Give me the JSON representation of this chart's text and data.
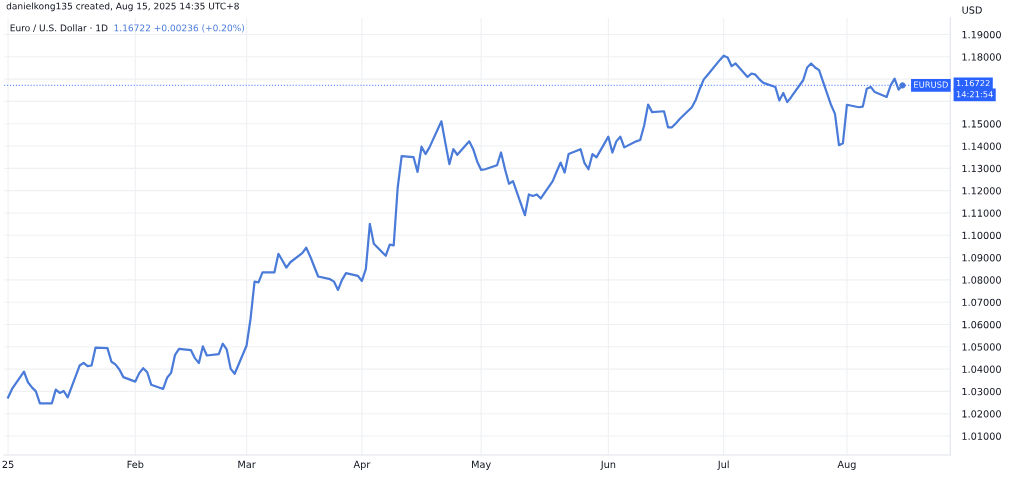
{
  "chart_data": {
    "type": "line",
    "title": "Euro / U.S. Dollar · 1D",
    "subtitle": "1.16722 +0.00236 (+0.20%)",
    "ylabel": "USD",
    "annotations": [
      "danielkong135 created, Aug 15, 2025 14:35 UTC+8",
      "1.16722",
      "14:21:54"
    ],
    "x": [
      "2025-01-02",
      "2025-01-03",
      "2025-01-06",
      "2025-01-07",
      "2025-01-08",
      "2025-01-09",
      "2025-01-10",
      "2025-01-13",
      "2025-01-14",
      "2025-01-15",
      "2025-01-16",
      "2025-01-17",
      "2025-01-20",
      "2025-01-21",
      "2025-01-22",
      "2025-01-23",
      "2025-01-24",
      "2025-01-27",
      "2025-01-28",
      "2025-01-29",
      "2025-01-30",
      "2025-01-31",
      "2025-02-03",
      "2025-02-04",
      "2025-02-05",
      "2025-02-06",
      "2025-02-07",
      "2025-02-10",
      "2025-02-11",
      "2025-02-12",
      "2025-02-13",
      "2025-02-14",
      "2025-02-17",
      "2025-02-18",
      "2025-02-19",
      "2025-02-20",
      "2025-02-21",
      "2025-02-24",
      "2025-02-25",
      "2025-02-26",
      "2025-02-27",
      "2025-02-28",
      "2025-03-03",
      "2025-03-04",
      "2025-03-05",
      "2025-03-06",
      "2025-03-07",
      "2025-03-10",
      "2025-03-11",
      "2025-03-12",
      "2025-03-13",
      "2025-03-14",
      "2025-03-17",
      "2025-03-18",
      "2025-03-19",
      "2025-03-20",
      "2025-03-21",
      "2025-03-24",
      "2025-03-25",
      "2025-03-26",
      "2025-03-27",
      "2025-03-28",
      "2025-03-31",
      "2025-04-01",
      "2025-04-02",
      "2025-04-03",
      "2025-04-04",
      "2025-04-07",
      "2025-04-08",
      "2025-04-09",
      "2025-04-10",
      "2025-04-11",
      "2025-04-14",
      "2025-04-15",
      "2025-04-16",
      "2025-04-17",
      "2025-04-18",
      "2025-04-21",
      "2025-04-22",
      "2025-04-23",
      "2025-04-24",
      "2025-04-25",
      "2025-04-28",
      "2025-04-29",
      "2025-04-30",
      "2025-05-01",
      "2025-05-02",
      "2025-05-05",
      "2025-05-06",
      "2025-05-07",
      "2025-05-08",
      "2025-05-09",
      "2025-05-12",
      "2025-05-13",
      "2025-05-14",
      "2025-05-15",
      "2025-05-16",
      "2025-05-19",
      "2025-05-20",
      "2025-05-21",
      "2025-05-22",
      "2025-05-23",
      "2025-05-26",
      "2025-05-27",
      "2025-05-28",
      "2025-05-29",
      "2025-05-30",
      "2025-06-02",
      "2025-06-03",
      "2025-06-04",
      "2025-06-05",
      "2025-06-06",
      "2025-06-09",
      "2025-06-10",
      "2025-06-11",
      "2025-06-12",
      "2025-06-13",
      "2025-06-16",
      "2025-06-17",
      "2025-06-18",
      "2025-06-19",
      "2025-06-20",
      "2025-06-23",
      "2025-06-24",
      "2025-06-25",
      "2025-06-26",
      "2025-06-27",
      "2025-06-30",
      "2025-07-01",
      "2025-07-02",
      "2025-07-03",
      "2025-07-04",
      "2025-07-07",
      "2025-07-08",
      "2025-07-09",
      "2025-07-10",
      "2025-07-11",
      "2025-07-14",
      "2025-07-15",
      "2025-07-16",
      "2025-07-17",
      "2025-07-18",
      "2025-07-21",
      "2025-07-22",
      "2025-07-23",
      "2025-07-24",
      "2025-07-25",
      "2025-07-28",
      "2025-07-29",
      "2025-07-30",
      "2025-07-31",
      "2025-08-01",
      "2025-08-04",
      "2025-08-05",
      "2025-08-06",
      "2025-08-07",
      "2025-08-08",
      "2025-08-11",
      "2025-08-12",
      "2025-08-13",
      "2025-08-14",
      "2025-08-15"
    ],
    "series": [
      {
        "color": "#4a7bd9",
        "values": [
          1.0273,
          1.0311,
          1.0389,
          1.0341,
          1.0318,
          1.03,
          1.0246,
          1.0246,
          1.0308,
          1.0293,
          1.0302,
          1.0273,
          1.0416,
          1.0428,
          1.0413,
          1.0416,
          1.0496,
          1.0494,
          1.0433,
          1.0421,
          1.0398,
          1.0364,
          1.0344,
          1.0382,
          1.0404,
          1.0386,
          1.033,
          1.0311,
          1.0361,
          1.0383,
          1.0464,
          1.0491,
          1.0485,
          1.0449,
          1.0427,
          1.0502,
          1.0461,
          1.0467,
          1.0514,
          1.0488,
          1.0401,
          1.0379,
          1.0506,
          1.0627,
          1.0792,
          1.0789,
          1.0834,
          1.0834,
          1.0917,
          1.0887,
          1.0855,
          1.0879,
          1.092,
          1.0944,
          1.0905,
          1.086,
          1.0815,
          1.0803,
          1.0792,
          1.0755,
          1.08,
          1.083,
          1.0818,
          1.0795,
          1.0849,
          1.1051,
          1.0962,
          1.0908,
          1.0958,
          1.0955,
          1.1213,
          1.1355,
          1.135,
          1.1284,
          1.1397,
          1.1364,
          1.1394,
          1.1511,
          1.1413,
          1.1319,
          1.1386,
          1.1361,
          1.1421,
          1.1386,
          1.1331,
          1.1293,
          1.1296,
          1.1314,
          1.1371,
          1.1296,
          1.1231,
          1.1243,
          1.109,
          1.1183,
          1.1176,
          1.1183,
          1.1165,
          1.1243,
          1.1286,
          1.1326,
          1.1281,
          1.1364,
          1.1386,
          1.1323,
          1.1296,
          1.1364,
          1.1349,
          1.1442,
          1.1371,
          1.1421,
          1.1442,
          1.1394,
          1.1421,
          1.1427,
          1.1492,
          1.1586,
          1.1552,
          1.1556,
          1.1484,
          1.1484,
          1.1502,
          1.1522,
          1.1574,
          1.1608,
          1.1657,
          1.1699,
          1.172,
          1.1785,
          1.1805,
          1.1797,
          1.1758,
          1.177,
          1.171,
          1.1725,
          1.172,
          1.1699,
          1.1683,
          1.1665,
          1.1604,
          1.1638,
          1.1597,
          1.162,
          1.1695,
          1.1752,
          1.177,
          1.1752,
          1.174,
          1.1585,
          1.1544,
          1.1404,
          1.1413,
          1.1585,
          1.1574,
          1.1577,
          1.1657,
          1.1665,
          1.1642,
          1.162,
          1.1672,
          1.1702,
          1.1653,
          1.1672
        ]
      }
    ],
    "xlim": [
      "2025-01-01",
      "2025-08-27"
    ],
    "xticks": [
      {
        "value": "2025-01-02",
        "label": "25"
      },
      {
        "value": "2025-02-03",
        "label": "Feb"
      },
      {
        "value": "2025-03-03",
        "label": "Mar"
      },
      {
        "value": "2025-04-01",
        "label": "Apr"
      },
      {
        "value": "2025-05-01",
        "label": "May"
      },
      {
        "value": "2025-06-02",
        "label": "Jun"
      },
      {
        "value": "2025-07-01",
        "label": "Jul"
      },
      {
        "value": "2025-08-01",
        "label": "Aug"
      }
    ],
    "ylim": [
      1.0015,
      1.1975
    ],
    "yticks": [
      {
        "value": 1.01,
        "label": "1.01000"
      },
      {
        "value": 1.02,
        "label": "1.02000"
      },
      {
        "value": 1.03,
        "label": "1.03000"
      },
      {
        "value": 1.04,
        "label": "1.04000"
      },
      {
        "value": 1.05,
        "label": "1.05000"
      },
      {
        "value": 1.06,
        "label": "1.06000"
      },
      {
        "value": 1.07,
        "label": "1.07000"
      },
      {
        "value": 1.08,
        "label": "1.08000"
      },
      {
        "value": 1.09,
        "label": "1.09000"
      },
      {
        "value": 1.1,
        "label": "1.10000"
      },
      {
        "value": 1.11,
        "label": "1.11000"
      },
      {
        "value": 1.12,
        "label": "1.12000"
      },
      {
        "value": 1.13,
        "label": "1.13000"
      },
      {
        "value": 1.14,
        "label": "1.14000"
      },
      {
        "value": 1.15,
        "label": "1.15000"
      },
      {
        "value": 1.16,
        "label": null
      },
      {
        "value": 1.17,
        "label": null
      },
      {
        "value": 1.18,
        "label": "1.18000"
      },
      {
        "value": 1.19,
        "label": "1.19000"
      }
    ],
    "ref_lines": [
      {
        "axis": "y",
        "value": 1.16722,
        "label": "EURUSD",
        "color": "#2962ff",
        "line_style": "dotted"
      }
    ],
    "grid": true,
    "line_style": "solid",
    "marker": "none"
  }
}
